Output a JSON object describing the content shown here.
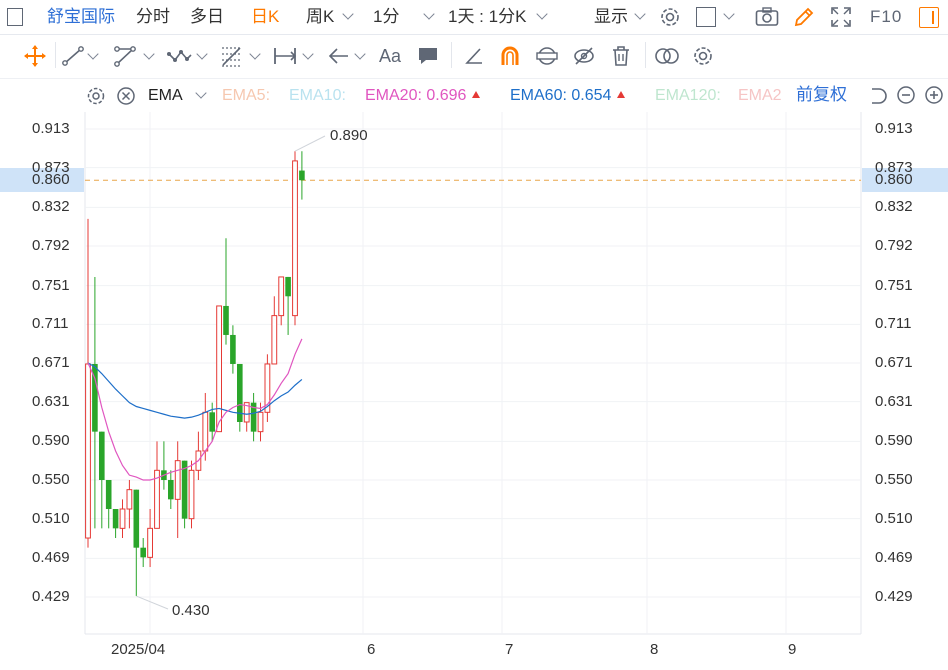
{
  "topbar": {
    "stock_name": "舒宝国际",
    "tabs": [
      "分时",
      "多日",
      "日K",
      "周K"
    ],
    "active_tab": "日K",
    "period": "1分",
    "multi_period": "1天 : 1分K",
    "display": "显示",
    "f10": "F10"
  },
  "toolbar": {
    "text_tool": "Aa"
  },
  "indicator": {
    "name": "EMA",
    "ema5": "EMA5:",
    "ema10": "EMA10:",
    "ema20_label": "EMA20:",
    "ema20_value": "0.696",
    "ema60_label": "EMA60:",
    "ema60_value": "0.654",
    "ema120": "EMA120:",
    "ema250": "EMA2",
    "adjust": "前复权"
  },
  "colors": {
    "up": "#e53935",
    "down": "#2aa52a",
    "ema20": "#e056c0",
    "ema60": "#1e6fc9",
    "accent": "#2e6fd6",
    "active": "#ff7a00"
  },
  "chart_data": {
    "type": "candlestick",
    "y_ticks": [
      "0.913",
      "0.873",
      "0.832",
      "0.792",
      "0.751",
      "0.711",
      "0.671",
      "0.631",
      "0.590",
      "0.550",
      "0.510",
      "0.469",
      "0.429"
    ],
    "ylim": [
      0.4,
      0.92
    ],
    "x_labels": [
      "2025/04",
      "6",
      "7",
      "8",
      "9"
    ],
    "current_price": "0.860",
    "max_label": "0.890",
    "min_label": "0.430",
    "candles": [
      [
        0.49,
        0.67,
        0.82,
        0.48
      ],
      [
        0.67,
        0.6,
        0.76,
        0.5
      ],
      [
        0.6,
        0.55,
        0.6,
        0.5
      ],
      [
        0.55,
        0.52,
        0.55,
        0.5
      ],
      [
        0.52,
        0.5,
        0.52,
        0.49
      ],
      [
        0.5,
        0.52,
        0.53,
        0.49
      ],
      [
        0.52,
        0.54,
        0.55,
        0.5
      ],
      [
        0.54,
        0.48,
        0.54,
        0.43
      ],
      [
        0.48,
        0.47,
        0.49,
        0.46
      ],
      [
        0.47,
        0.5,
        0.52,
        0.46
      ],
      [
        0.5,
        0.56,
        0.59,
        0.5
      ],
      [
        0.56,
        0.55,
        0.59,
        0.54
      ],
      [
        0.55,
        0.53,
        0.56,
        0.52
      ],
      [
        0.53,
        0.57,
        0.59,
        0.49
      ],
      [
        0.57,
        0.51,
        0.57,
        0.5
      ],
      [
        0.51,
        0.56,
        0.57,
        0.5
      ],
      [
        0.56,
        0.58,
        0.6,
        0.55
      ],
      [
        0.58,
        0.62,
        0.64,
        0.57
      ],
      [
        0.62,
        0.6,
        0.63,
        0.59
      ],
      [
        0.6,
        0.73,
        0.73,
        0.6
      ],
      [
        0.73,
        0.7,
        0.8,
        0.69
      ],
      [
        0.7,
        0.67,
        0.71,
        0.66
      ],
      [
        0.67,
        0.61,
        0.67,
        0.6
      ],
      [
        0.61,
        0.63,
        0.63,
        0.6
      ],
      [
        0.63,
        0.6,
        0.64,
        0.59
      ],
      [
        0.6,
        0.62,
        0.63,
        0.59
      ],
      [
        0.62,
        0.67,
        0.68,
        0.61
      ],
      [
        0.67,
        0.72,
        0.74,
        0.67
      ],
      [
        0.72,
        0.76,
        0.76,
        0.71
      ],
      [
        0.76,
        0.74,
        0.76,
        0.7
      ],
      [
        0.72,
        0.88,
        0.89,
        0.71
      ],
      [
        0.87,
        0.86,
        0.89,
        0.84
      ]
    ],
    "ema20": [
      0.671,
      0.655,
      0.625,
      0.6,
      0.58,
      0.565,
      0.555,
      0.553,
      0.55,
      0.55,
      0.552,
      0.555,
      0.558,
      0.56,
      0.562,
      0.565,
      0.57,
      0.58,
      0.59,
      0.61,
      0.62,
      0.625,
      0.628,
      0.627,
      0.625,
      0.624,
      0.628,
      0.638,
      0.65,
      0.66,
      0.68,
      0.696
    ],
    "ema60": [
      0.671,
      0.667,
      0.66,
      0.652,
      0.644,
      0.637,
      0.63,
      0.626,
      0.624,
      0.622,
      0.62,
      0.618,
      0.616,
      0.615,
      0.614,
      0.615,
      0.617,
      0.62,
      0.623,
      0.624,
      0.622,
      0.62,
      0.619,
      0.618,
      0.619,
      0.621,
      0.626,
      0.632,
      0.637,
      0.641,
      0.648,
      0.654
    ]
  }
}
